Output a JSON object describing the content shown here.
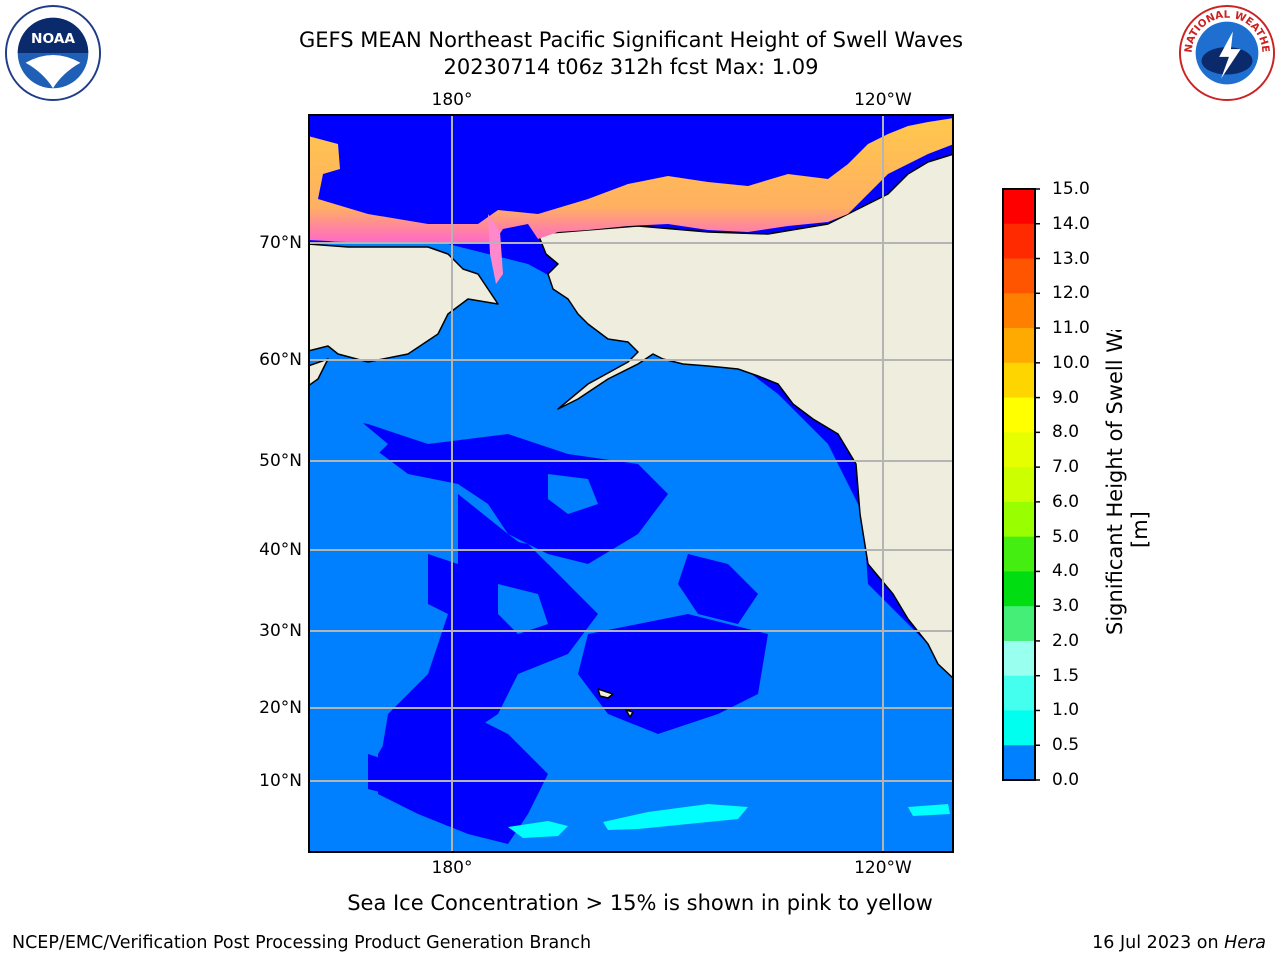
{
  "title": {
    "line1": "GEFS MEAN Northeast Pacific Significant Height of Swell Waves",
    "line2": "20230714 t06z 312h fcst   Max: 1.09"
  },
  "axes": {
    "lon_ticks": [
      "180°",
      "120°W"
    ],
    "lat_ticks": [
      "70°N",
      "60°N",
      "50°N",
      "40°N",
      "30°N",
      "20°N",
      "10°N"
    ]
  },
  "colorbar": {
    "label": "Significant Height of Swell Waves [m]",
    "ticks": [
      "15.0",
      "14.0",
      "13.0",
      "12.0",
      "11.0",
      "10.0",
      "9.0",
      "8.0",
      "7.0",
      "6.0",
      "5.0",
      "4.0",
      "3.0",
      "2.0",
      "1.5",
      "1.0",
      "0.5",
      "0.0"
    ],
    "colors": [
      "#ff0000",
      "#ff2a00",
      "#ff5500",
      "#ff8000",
      "#ffaa00",
      "#ffd500",
      "#ffff00",
      "#e6ff00",
      "#ccff00",
      "#99ff00",
      "#44ee11",
      "#00dd11",
      "#44ee77",
      "#99ffee",
      "#44ffee",
      "#00ffee",
      "#0080ff",
      "#0000ff"
    ]
  },
  "map_colors": {
    "land": "#efedde",
    "swell_0_05": "#0000ff",
    "swell_05_10": "#0080ff",
    "swell_10_15": "#00ffff",
    "ice_low": "#ff66cc",
    "ice_high": "#ffc84d"
  },
  "caption": "Sea Ice Concentration > 15% is shown in pink to yellow",
  "footer": {
    "left": "NCEP/EMC/Verification Post Processing Product Generation Branch",
    "right_prefix": "16 Jul 2023 on ",
    "right_italic": "Hera"
  },
  "logos": {
    "noaa": {
      "text": "NOAA",
      "icon": "noaa-logo"
    },
    "nws": {
      "text": "NATIONAL WEATHER SERVICE",
      "icon": "nws-logo"
    }
  }
}
